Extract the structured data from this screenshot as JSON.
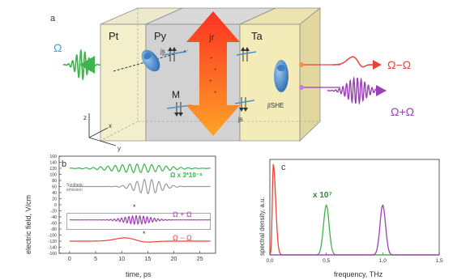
{
  "panel_a": {
    "panel_label": "a",
    "labels": {
      "omega_in": "Ω",
      "pt": "Pt",
      "py": "Py",
      "ta": "Ta",
      "j_s": "js",
      "m": "M",
      "j_r": "jr",
      "j_she": "jISHE",
      "omega_minus_out": "Ω−Ω",
      "omega_plus_out": "Ω+Ω",
      "axis_x": "x",
      "axis_y": "y",
      "axis_z": "z"
    },
    "colors": {
      "input_pulse": "#3cb44b",
      "output_minus": "#e8443a",
      "output_plus": "#9b3fb5",
      "current_arrow": "#ff4a1c",
      "pt_layer": "#f2efc8",
      "py_layer": "#cfcfcf",
      "ta_layer": "#f3ebb6"
    },
    "icons": [
      "spin-arrows-icon",
      "electron-icon"
    ]
  },
  "panel_b": {
    "panel_label": "b",
    "ylabel": "electric field, V/cm",
    "xlabel": "time, ps",
    "annotations": {
      "green": "Ω x 3*10⁻⁸",
      "gray_line1": "Synthetic",
      "gray_line2": "emission",
      "purple": "Ω + Ω",
      "red": "Ω − Ω"
    },
    "y_ticks": [
      "160",
      "140",
      "120",
      "100",
      "80",
      "60",
      "40",
      "20",
      "0",
      "-20",
      "-40",
      "-60",
      "-80",
      "-100",
      "-120",
      "-140",
      "-160"
    ],
    "x_ticks": [
      "0",
      "5",
      "10",
      "15",
      "20",
      "25"
    ]
  },
  "panel_c": {
    "panel_label": "c",
    "ylabel": "spectral density, a.u.",
    "xlabel": "frequency, THz",
    "annotation": "x 10⁷",
    "x_ticks": [
      "0,0",
      "0,5",
      "1,0",
      "1,5"
    ]
  },
  "chart_data": [
    {
      "type": "line",
      "xlabel": "time, ps",
      "ylabel": "electric field, V/cm",
      "xlim": [
        -2,
        28
      ],
      "ylim": [
        -160,
        160
      ],
      "series": [
        {
          "name": "Ω x 3*10⁻⁸",
          "color": "#3cb44b",
          "offset": 120,
          "amplitude": 14,
          "center": 13,
          "width": 7,
          "period": 1.4
        },
        {
          "name": "Synthetic emission",
          "color": "#9a9a9a",
          "offset": 60,
          "amplitude": 24,
          "center": 15,
          "width": 3.5,
          "period": 1.4
        },
        {
          "name": "Ω + Ω",
          "color": "#9b3fb5",
          "offset": -50,
          "amplitude": 14,
          "center": 13,
          "width": 3.5,
          "period": 0.7
        },
        {
          "name": "Ω − Ω",
          "color": "#e8443a",
          "offset": -120,
          "amplitude": 12,
          "center": 11,
          "width": 3,
          "period": 0
        }
      ]
    },
    {
      "type": "line",
      "xlabel": "frequency, THz",
      "ylabel": "spectral density, a.u.",
      "xlim": [
        0,
        1.5
      ],
      "ylim": [
        0,
        1
      ],
      "series": [
        {
          "name": "Ω − Ω",
          "color": "#e8443a",
          "peak_x": 0.03,
          "peak_y": 0.95
        },
        {
          "name": "Ω",
          "color": "#3cb44b",
          "peak_x": 0.5,
          "peak_y": 0.52
        },
        {
          "name": "Ω + Ω",
          "color": "#9b3fb5",
          "peak_x": 1.0,
          "peak_y": 0.52
        }
      ]
    }
  ]
}
